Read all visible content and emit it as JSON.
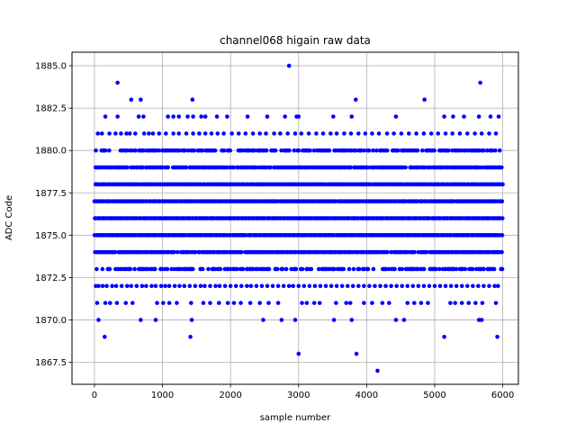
{
  "chart_data": {
    "type": "scatter",
    "title": "channel068 higain raw data",
    "xlabel": "sample number",
    "ylabel": "ADC Code",
    "xlim": [
      -330,
      6230
    ],
    "ylim": [
      1866.2,
      1885.8
    ],
    "xticks": [
      0,
      1000,
      2000,
      3000,
      4000,
      5000,
      6000
    ],
    "yticks": [
      1867.5,
      1870.0,
      1872.5,
      1875.0,
      1877.5,
      1880.0,
      1882.5,
      1885.0
    ],
    "xtick_labels": [
      "0",
      "1000",
      "2000",
      "3000",
      "4000",
      "5000",
      "6000"
    ],
    "ytick_labels": [
      "1867.5",
      "1870.0",
      "1872.5",
      "1875.0",
      "1877.5",
      "1880.0",
      "1882.5",
      "1885.0"
    ],
    "grid": true,
    "marker_color": "#0000ff",
    "sample_count": 6000,
    "dense_levels": [
      {
        "y": 1873,
        "density": 0.6
      },
      {
        "y": 1874,
        "density": 0.95
      },
      {
        "y": 1875,
        "density": 1.0
      },
      {
        "y": 1876,
        "density": 1.0
      },
      {
        "y": 1877,
        "density": 1.0
      },
      {
        "y": 1878,
        "density": 1.0
      },
      {
        "y": 1879,
        "density": 0.9
      },
      {
        "y": 1880,
        "density": 0.6
      }
    ],
    "sparse_levels": [
      {
        "y": 1872,
        "points": [
          20,
          60,
          120,
          180,
          260,
          320,
          400,
          480,
          540,
          620,
          700,
          760,
          840,
          900,
          980,
          1040,
          1100,
          1180,
          1250,
          1320,
          1400,
          1480,
          1560,
          1620,
          1700,
          1780,
          1840,
          1920,
          2000,
          2080,
          2160,
          2240,
          2300,
          2380,
          2460,
          2540,
          2620,
          2700,
          2780,
          2860,
          2920,
          3000,
          3080,
          3160,
          3240,
          3320,
          3400,
          3480,
          3560,
          3640,
          3720,
          3800,
          3880,
          3960,
          4040,
          4120,
          4200,
          4280,
          4360,
          4440,
          4520,
          4600,
          4680,
          4760,
          4840,
          4920,
          5000,
          5080,
          5160,
          5240,
          5320,
          5400,
          5480,
          5560,
          5640,
          5720,
          5800,
          5880,
          5930
        ]
      },
      {
        "y": 1871,
        "points": [
          40,
          160,
          230,
          330,
          460,
          560,
          920,
          1010,
          1100,
          1210,
          1420,
          1600,
          1700,
          1830,
          1960,
          2050,
          2150,
          2290,
          2430,
          2560,
          2700,
          3050,
          3120,
          3230,
          3310,
          3550,
          3700,
          3760,
          3960,
          4080,
          4230,
          4330,
          4600,
          4700,
          4800,
          4900,
          5230,
          5300,
          5400,
          5500,
          5600,
          5700,
          5900
        ]
      },
      {
        "y": 1881,
        "points": [
          50,
          110,
          220,
          310,
          390,
          470,
          520,
          600,
          730,
          800,
          860,
          950,
          1050,
          1160,
          1240,
          1350,
          1450,
          1540,
          1630,
          1720,
          1810,
          1900,
          2020,
          2120,
          2220,
          2330,
          2430,
          2520,
          2640,
          2730,
          2840,
          2950,
          3040,
          3150,
          3260,
          3360,
          3470,
          3560,
          3670,
          3770,
          3880,
          3980,
          4080,
          4180,
          4300,
          4400,
          4510,
          4620,
          4730,
          4840,
          4950,
          5050,
          5160,
          5260,
          5370,
          5480,
          5590,
          5690,
          5800,
          5900
        ]
      },
      {
        "y": 1882,
        "points": [
          160,
          340,
          650,
          720,
          1080,
          1160,
          1240,
          1370,
          1450,
          1570,
          1630,
          1800,
          1950,
          2250,
          2540,
          2800,
          2970,
          3000,
          3510,
          3780,
          4430,
          5140,
          5270,
          5430,
          5650,
          5820,
          5940
        ]
      },
      {
        "y": 1870,
        "points": [
          60,
          680,
          900,
          1430,
          2480,
          2750,
          2950,
          3520,
          3780,
          4430,
          4550,
          5650,
          5690
        ]
      },
      {
        "y": 1883,
        "points": [
          540,
          680,
          1440,
          3840,
          4850
        ]
      },
      {
        "y": 1884,
        "points": [
          340,
          5670
        ]
      },
      {
        "y": 1885,
        "points": [
          2860
        ]
      },
      {
        "y": 1869,
        "points": [
          150,
          1410,
          5140,
          5920
        ]
      },
      {
        "y": 1868,
        "points": [
          3000,
          3850
        ]
      },
      {
        "y": 1867,
        "points": [
          4160
        ]
      }
    ]
  }
}
